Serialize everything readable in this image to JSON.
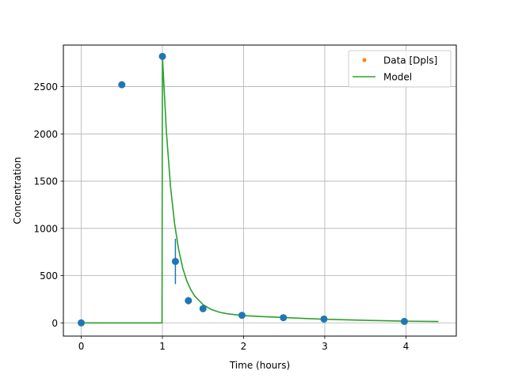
{
  "chart_data": {
    "type": "scatter",
    "xlabel": "Time (hours)",
    "ylabel": "Concentration",
    "xlim": [
      -0.22,
      4.62
    ],
    "ylim": [
      -140,
      2940
    ],
    "xticks": [
      0,
      1,
      2,
      3,
      4
    ],
    "xtick_labels": [
      "0",
      "1",
      "2",
      "3",
      "4"
    ],
    "yticks": [
      0,
      500,
      1000,
      1500,
      2000,
      2500
    ],
    "ytick_labels": [
      "0",
      "500",
      "1000",
      "1500",
      "2000",
      "2500"
    ],
    "grid": true,
    "legend_position": "top-right",
    "legend": [
      {
        "label": "Data [Dpls]",
        "color": "#ff7f0e",
        "marker": "point"
      },
      {
        "label": "Model",
        "color": "#2ca02c",
        "marker": "line"
      }
    ],
    "colors": {
      "data": "#1f77b4",
      "model": "#2ca02c",
      "legend_marker": "#ff7f0e",
      "grid": "#b0b0b0"
    },
    "series": [
      {
        "name": "Data [Dpls]",
        "type": "scatter",
        "x": [
          0,
          0.5,
          1.0,
          1.16,
          1.32,
          1.5,
          1.98,
          2.49,
          2.99,
          3.98
        ],
        "y": [
          0,
          2520,
          2820,
          650,
          235,
          150,
          80,
          55,
          40,
          15
        ],
        "yerr": [
          0,
          0,
          0,
          240,
          40,
          15,
          0,
          0,
          0,
          0
        ]
      },
      {
        "name": "Model",
        "type": "line",
        "x": [
          0,
          0.995,
          1.0,
          1.05,
          1.1,
          1.15,
          1.2,
          1.25,
          1.3,
          1.35,
          1.4,
          1.5,
          1.6,
          1.7,
          1.8,
          2.0,
          2.2,
          2.5,
          3.0,
          3.5,
          4.0,
          4.4
        ],
        "y": [
          0,
          0,
          2820,
          2010,
          1440,
          1050,
          775,
          580,
          445,
          350,
          282,
          193,
          142,
          113,
          96,
          77,
          68,
          56,
          38,
          27,
          18,
          14
        ]
      }
    ]
  }
}
